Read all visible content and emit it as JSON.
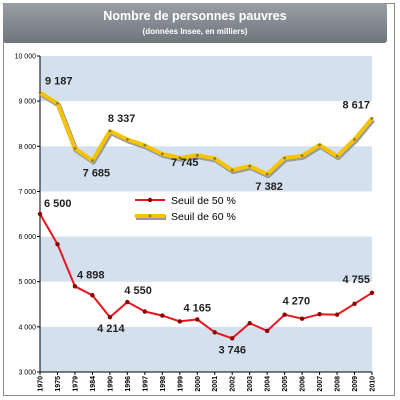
{
  "chart_data": {
    "type": "line",
    "title": "Nombre de personnes pauvres",
    "subtitle": "(données Insee, en milliers)",
    "categories": [
      "1970",
      "1975",
      "1979",
      "1984",
      "1990",
      "1996",
      "1997",
      "1998",
      "1999",
      "2000",
      "2001",
      "2002",
      "2003",
      "2004",
      "2005",
      "2006",
      "2007",
      "2008",
      "2009",
      "2010"
    ],
    "ylim": [
      3000,
      10000
    ],
    "yticks": [
      3000,
      4000,
      5000,
      6000,
      7000,
      8000,
      9000,
      10000
    ],
    "ytick_labels": [
      "3 000",
      "4 000",
      "5 000",
      "6 000",
      "7 000",
      "8 000",
      "9 000",
      "10 000"
    ],
    "grid_bands": true,
    "legend_position": "center",
    "series": [
      {
        "name": "Seuil de 50 %",
        "color": "#e8141e",
        "values": [
          6500,
          5830,
          4898,
          4700,
          4214,
          4550,
          4340,
          4250,
          4120,
          4165,
          3880,
          3746,
          4080,
          3910,
          4270,
          4180,
          4280,
          4270,
          4510,
          4755
        ],
        "labels": [
          {
            "index": 0,
            "text": "6 500"
          },
          {
            "index": 2,
            "text": "4 898"
          },
          {
            "index": 4,
            "text": "4 214"
          },
          {
            "index": 5,
            "text": "4 550"
          },
          {
            "index": 9,
            "text": "4 165"
          },
          {
            "index": 11,
            "text": "3 746"
          },
          {
            "index": 14,
            "text": "4 270"
          },
          {
            "index": 19,
            "text": "4 755"
          }
        ]
      },
      {
        "name": "Seuil de 60 %",
        "color": "#f5c400",
        "values": [
          9187,
          8950,
          7950,
          7685,
          8337,
          8150,
          8020,
          7830,
          7745,
          7800,
          7730,
          7470,
          7560,
          7382,
          7740,
          7790,
          8030,
          7780,
          8150,
          8617
        ],
        "labels": [
          {
            "index": 0,
            "text": "9 187"
          },
          {
            "index": 3,
            "text": "7 685"
          },
          {
            "index": 4,
            "text": "8 337"
          },
          {
            "index": 8,
            "text": "7 745"
          },
          {
            "index": 13,
            "text": "7 382"
          },
          {
            "index": 19,
            "text": "8 617"
          }
        ]
      }
    ]
  }
}
